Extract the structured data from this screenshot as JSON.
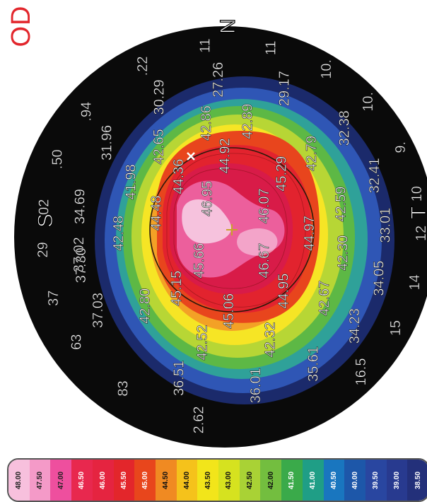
{
  "eye": "OD",
  "meridian_labels": {
    "S": "S",
    "N": "N",
    "T": "T"
  },
  "readings": [
    {
      "ring": "outer",
      "a": 200,
      "v": "37"
    },
    {
      "ring": "outer",
      "a": 185,
      "v": "29"
    },
    {
      "ring": "outer",
      "a": 172,
      "v": "02"
    },
    {
      "ring": "outer",
      "a": 157,
      "v": ".50"
    },
    {
      "ring": "outer",
      "a": 140,
      "v": ".94"
    },
    {
      "ring": "outer",
      "a": 118,
      "v": ".22"
    },
    {
      "ring": "outer",
      "a": 98,
      "v": "11"
    },
    {
      "ring": "outer",
      "a": 78,
      "v": "11"
    },
    {
      "ring": "outer",
      "a": 60,
      "v": "10."
    },
    {
      "ring": "outer",
      "a": 44,
      "v": "10."
    },
    {
      "ring": "outer",
      "a": 27,
      "v": "9."
    },
    {
      "ring": "outer",
      "a": 12,
      "v": "10"
    },
    {
      "ring": "outer",
      "a": 0,
      "v": "12"
    },
    {
      "ring": "outer",
      "a": -15,
      "v": "14"
    },
    {
      "ring": "outer",
      "a": -30,
      "v": "15"
    },
    {
      "ring": "outer",
      "a": -47,
      "v": "16.5"
    },
    {
      "ring": "outer",
      "a": -145,
      "v": "63"
    },
    {
      "ring": "outer",
      "a": -125,
      "v": "83"
    },
    {
      "ring": "outer",
      "a": -100,
      "v": "2.62"
    },
    {
      "ring": "r2",
      "a": 188,
      "v": "37.02"
    },
    {
      "ring": "r2",
      "a": 170,
      "v": "34.69"
    },
    {
      "ring": "r2",
      "a": 144,
      "v": "31.96"
    },
    {
      "ring": "r2",
      "a": 118,
      "v": "30.29"
    },
    {
      "ring": "r2",
      "a": 95,
      "v": "27.26"
    },
    {
      "ring": "r2",
      "a": 70,
      "v": "29.17"
    },
    {
      "ring": "r2",
      "a": 43,
      "v": "32.38"
    },
    {
      "ring": "r2",
      "a": 22,
      "v": "32.41"
    },
    {
      "ring": "r2",
      "a": 3,
      "v": "33.01"
    },
    {
      "ring": "r2",
      "a": -17,
      "v": "34.05"
    },
    {
      "ring": "r2",
      "a": -37,
      "v": "34.23"
    },
    {
      "ring": "r2",
      "a": -58,
      "v": "35.61"
    },
    {
      "ring": "r2",
      "a": -81,
      "v": "36.01"
    },
    {
      "ring": "r2",
      "a": -110,
      "v": "36.51"
    },
    {
      "ring": "r2",
      "a": -150,
      "v": "37.03"
    },
    {
      "ring": "r2",
      "a": -168,
      "v": "37.30"
    },
    {
      "ring": "r3",
      "a": 180,
      "v": "42.48"
    },
    {
      "ring": "r3",
      "a": 153,
      "v": "41.98"
    },
    {
      "ring": "r3",
      "a": 130,
      "v": "42.65"
    },
    {
      "ring": "r3",
      "a": 103,
      "v": "42.86"
    },
    {
      "ring": "r3",
      "a": 82,
      "v": "42.89"
    },
    {
      "ring": "r3",
      "a": 45,
      "v": "42.79"
    },
    {
      "ring": "r3",
      "a": 15,
      "v": "42.59"
    },
    {
      "ring": "r3",
      "a": -10,
      "v": "42.30"
    },
    {
      "ring": "r3",
      "a": -35,
      "v": "42.67"
    },
    {
      "ring": "r3",
      "a": -70,
      "v": "42.32"
    },
    {
      "ring": "r3",
      "a": -105,
      "v": "42.52"
    },
    {
      "ring": "r3",
      "a": -140,
      "v": "42.80"
    },
    {
      "ring": "r4",
      "a": 165,
      "v": "44.48"
    },
    {
      "ring": "r4",
      "a": 133,
      "v": "44.36"
    },
    {
      "ring": "r4",
      "a": 95,
      "v": "44.92"
    },
    {
      "ring": "r4",
      "a": 50,
      "v": "45.29"
    },
    {
      "ring": "r4",
      "a": 0,
      "v": "44.97"
    },
    {
      "ring": "r4",
      "a": -48,
      "v": "44.95"
    },
    {
      "ring": "r4",
      "a": -92,
      "v": "45.06"
    },
    {
      "ring": "r4",
      "a": -135,
      "v": "45.15"
    },
    {
      "ring": "r5",
      "a": 125,
      "v": "46.95"
    },
    {
      "ring": "r5",
      "a": 40,
      "v": "46.07"
    },
    {
      "ring": "r5",
      "a": -40,
      "v": "46.67"
    },
    {
      "ring": "r5",
      "a": -140,
      "v": "45.66"
    }
  ],
  "legend": {
    "values": [
      "48.00",
      "47.50",
      "47.00",
      "46.50",
      "46.00",
      "45.50",
      "45.00",
      "44.50",
      "44.00",
      "43.50",
      "43.00",
      "42.50",
      "42.00",
      "41.50",
      "41.00",
      "40.50",
      "40.00",
      "39.50",
      "39.00",
      "38.50"
    ],
    "colors": [
      "#f7c0dd",
      "#f49ac8",
      "#ee4f9e",
      "#e8284e",
      "#e52440",
      "#e3262b",
      "#e8461c",
      "#f08a22",
      "#f5c21b",
      "#f2e51a",
      "#d6e21f",
      "#a9d235",
      "#73be3f",
      "#3aaa4a",
      "#1f9e86",
      "#1976bf",
      "#1d57a9",
      "#2946a0",
      "#283a8f",
      "#23307a"
    ]
  },
  "map_colors": {
    "outer": "#0a0a0a",
    "navy": "#1b2a6b",
    "blue": "#2f56b5",
    "teal": "#2fa199",
    "green": "#5db845",
    "lime": "#b7d635",
    "yellow": "#f6e525",
    "orange": "#f3a126",
    "redorange": "#e8451d",
    "red": "#e2232e",
    "crimson": "#d81b48",
    "pink": "#ec5f9c",
    "lightpink": "#f6c2dd"
  }
}
